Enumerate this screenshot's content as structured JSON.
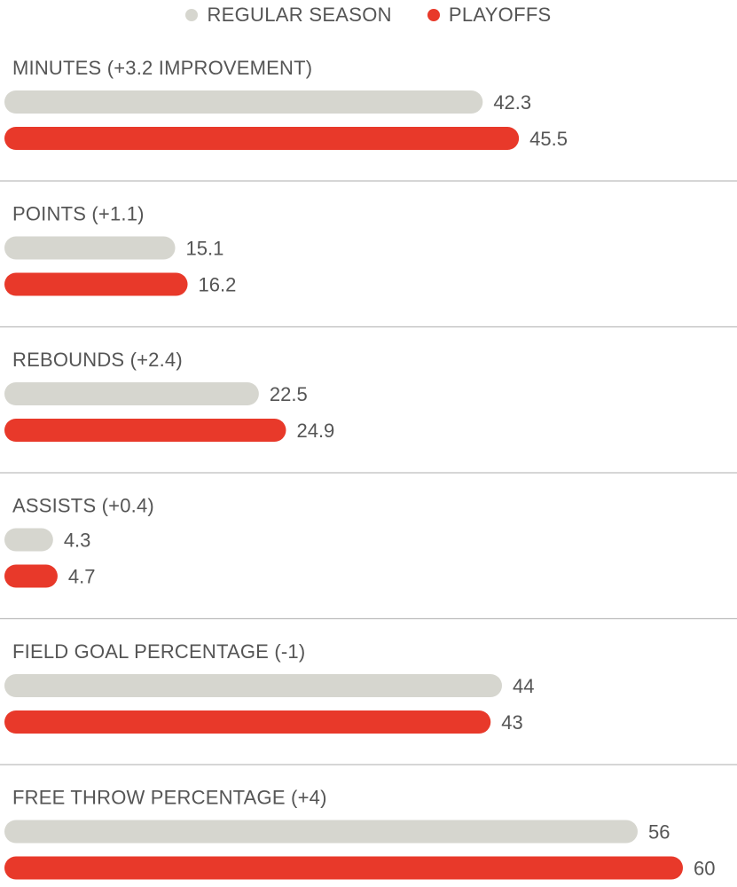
{
  "legend": {
    "regular_label": "REGULAR SEASON",
    "playoffs_label": "PLAYOFFS"
  },
  "colors": {
    "regular": "#d6d6cf",
    "playoffs": "#e8392a",
    "divider": "#bdbdbd"
  },
  "chart_data": {
    "type": "bar",
    "orientation": "horizontal",
    "categories": [
      "MINUTES (+3.2 IMPROVEMENT)",
      "POINTS (+1.1)",
      "REBOUNDS (+2.4)",
      "ASSISTS (+0.4)",
      "FIELD GOAL PERCENTAGE (-1)",
      "FREE THROW PERCENTAGE  (+4)"
    ],
    "series": [
      {
        "name": "REGULAR SEASON",
        "values": [
          "42.3",
          "15.1",
          "22.5",
          "4.3",
          "44",
          "56"
        ]
      },
      {
        "name": "PLAYOFFS",
        "values": [
          "45.5",
          "16.2",
          "24.9",
          "4.7",
          "43",
          "60"
        ]
      }
    ],
    "xlim": [
      0,
      60
    ],
    "legend_position": "top-center",
    "grid": false
  }
}
